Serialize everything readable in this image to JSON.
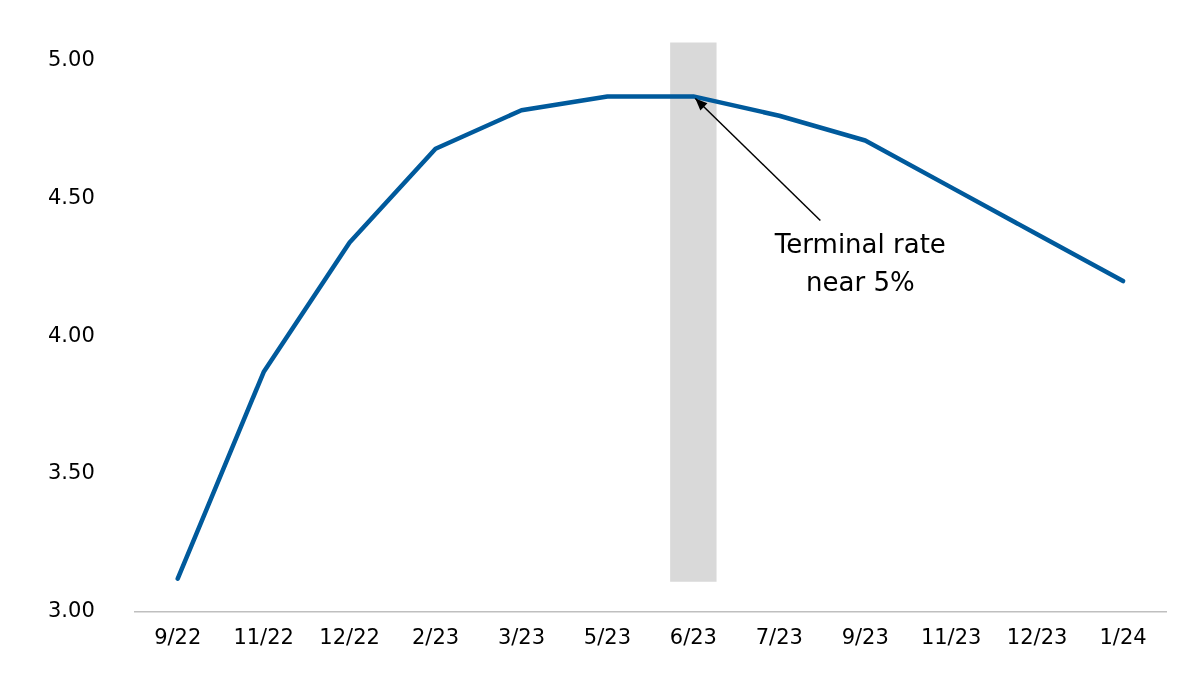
{
  "chart_data": {
    "type": "line",
    "categories": [
      "9/22",
      "11/22",
      "12/22",
      "2/23",
      "3/23",
      "5/23",
      "6/23",
      "7/23",
      "9/23",
      "11/23",
      "12/23",
      "1/24"
    ],
    "series": [
      {
        "color": "#005a9c",
        "values": [
          3.12,
          3.87,
          4.34,
          4.68,
          4.82,
          4.87,
          4.87,
          4.8,
          4.71,
          4.54,
          4.37,
          4.2
        ]
      }
    ],
    "ylim": [
      3,
      5
    ],
    "yticks": [
      {
        "value": 3,
        "label": "3.00"
      },
      {
        "value": 3.5,
        "label": "3.50"
      },
      {
        "value": 4,
        "label": "4.00"
      },
      {
        "value": 4.5,
        "label": "4.50"
      },
      {
        "value": 5,
        "label": "5.00"
      }
    ],
    "bands": [
      {
        "axis": "x",
        "from": "6/23",
        "to": "6/23",
        "color": "#d9d9d9"
      }
    ],
    "annotations": [
      {
        "text": "Terminal rate\nnear 5%",
        "x": "6/23",
        "y": 4.87
      }
    ],
    "grid": false,
    "legend": false,
    "marker": "none",
    "line_style": "solid"
  }
}
